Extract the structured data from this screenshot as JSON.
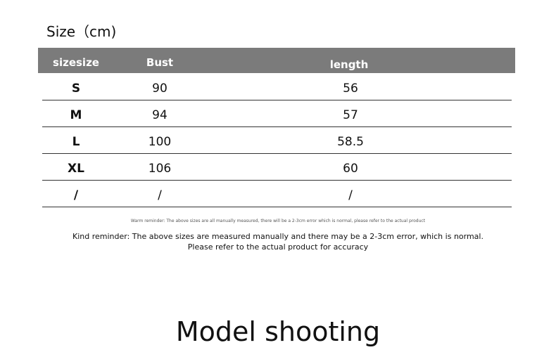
{
  "title": "Size（cm)",
  "table": {
    "headers": [
      "sizesize",
      "Bust",
      "length"
    ],
    "rows": [
      [
        "S",
        "90",
        "56"
      ],
      [
        "M",
        "94",
        "57"
      ],
      [
        "L",
        "100",
        "58.5"
      ],
      [
        "XL",
        "106",
        "60"
      ],
      [
        "/",
        "/",
        "/"
      ]
    ]
  },
  "warm_reminder": "Warm reminder: The above sizes are all manually measured, there will be a 2-3cm error which is normal, please refer to the actual product",
  "kind_reminder_1": "Kind reminder: The above sizes are measured manually and there may be a 2-3cm error, which is normal.",
  "kind_reminder_2": "Please refer to the actual product for accuracy",
  "footer": "Model shooting",
  "colors": {
    "header_bg": "#7b7b7b"
  }
}
